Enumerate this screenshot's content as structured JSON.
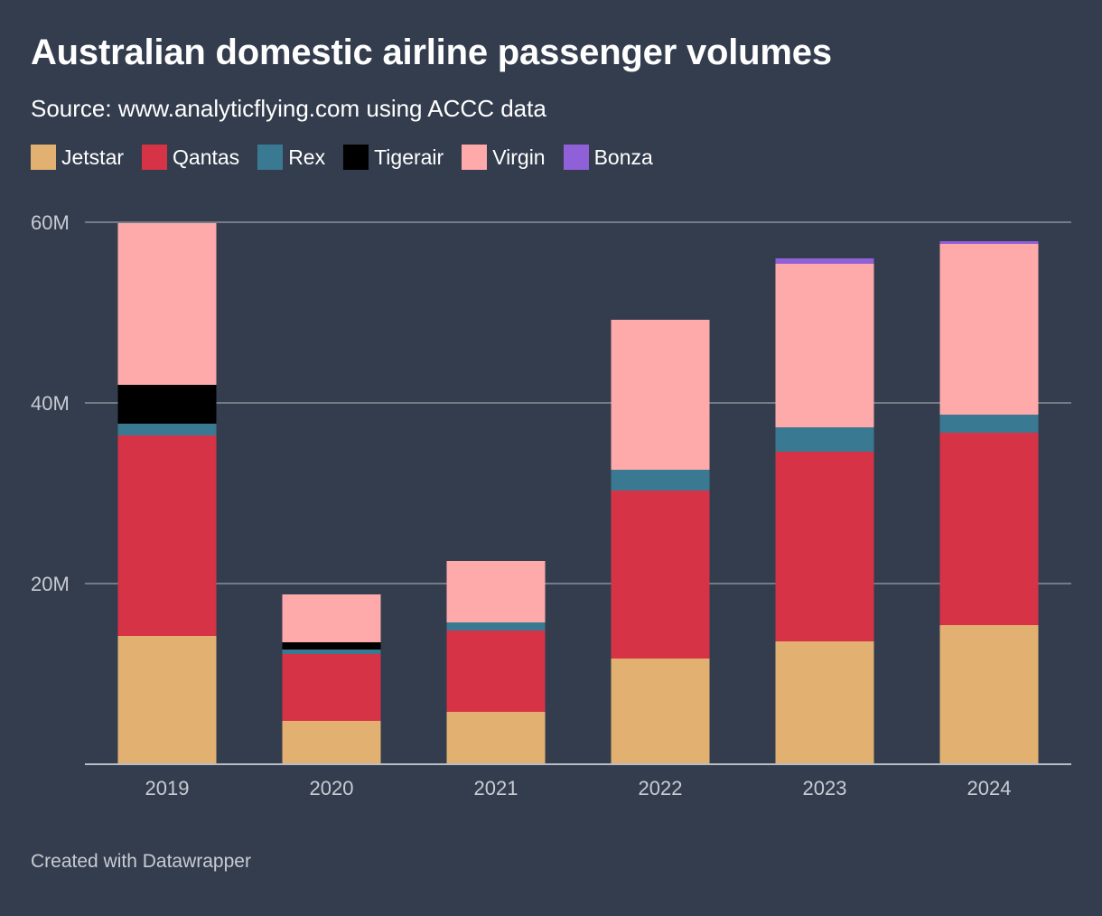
{
  "title": "Australian domestic airline passenger volumes",
  "subtitle": "Source: www.analyticflying.com using ACCC data",
  "footer": "Created with Datawrapper",
  "colors": {
    "background": "#343d4e",
    "grid": "#8a909a",
    "tick_text": "#c8ccd3"
  },
  "chart_data": {
    "type": "bar",
    "stacked": true,
    "categories": [
      "2019",
      "2020",
      "2021",
      "2022",
      "2023",
      "2024"
    ],
    "y_ticks": [
      {
        "value": 20,
        "label": "20M"
      },
      {
        "value": 40,
        "label": "40M"
      },
      {
        "value": 60,
        "label": "60M"
      }
    ],
    "ylim": [
      0,
      60
    ],
    "unit": "M",
    "grid": true,
    "legend_position": "top-left",
    "series": [
      {
        "name": "Jetstar",
        "color": "#e2b172",
        "values": [
          14.2,
          4.8,
          5.8,
          11.7,
          13.6,
          15.4
        ]
      },
      {
        "name": "Qantas",
        "color": "#d73346",
        "values": [
          22.2,
          7.4,
          9.0,
          18.6,
          21.0,
          21.3
        ]
      },
      {
        "name": "Rex",
        "color": "#3a7992",
        "values": [
          1.3,
          0.5,
          0.9,
          2.3,
          2.7,
          2.0
        ]
      },
      {
        "name": "Tigerair",
        "color": "#000000",
        "values": [
          4.3,
          0.8,
          0.0,
          0.0,
          0.0,
          0.0
        ]
      },
      {
        "name": "Virgin",
        "color": "#ffaaaa",
        "values": [
          17.9,
          5.3,
          6.8,
          16.6,
          18.1,
          18.9
        ]
      },
      {
        "name": "Bonza",
        "color": "#9060d8",
        "values": [
          0.0,
          0.0,
          0.0,
          0.0,
          0.6,
          0.3
        ]
      }
    ]
  }
}
